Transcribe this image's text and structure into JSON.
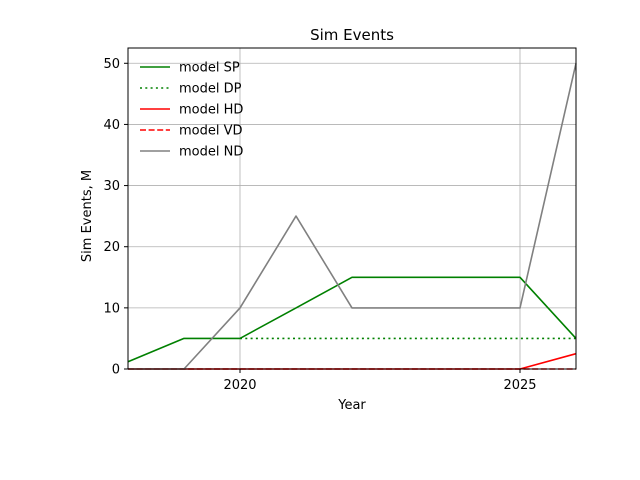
{
  "chart_data": {
    "type": "line",
    "title": "Sim Events",
    "xlabel": "Year",
    "ylabel": "Sim Events, M",
    "xlim": [
      2018,
      2026
    ],
    "ylim": [
      0,
      52.5
    ],
    "x_ticks": [
      2020,
      2025
    ],
    "y_ticks": [
      0,
      10,
      20,
      30,
      40,
      50
    ],
    "grid": true,
    "legend_position": "top-left",
    "x": [
      2018,
      2019,
      2020,
      2021,
      2022,
      2023,
      2024,
      2025,
      2026
    ],
    "series": [
      {
        "name": "model SP",
        "color": "#008000",
        "style": "solid",
        "values": [
          1.2,
          5,
          5,
          10,
          15,
          15,
          15,
          15,
          5
        ]
      },
      {
        "name": "model DP",
        "color": "#008000",
        "style": "dotted",
        "values": [
          null,
          null,
          5,
          5,
          5,
          5,
          5,
          5,
          5
        ]
      },
      {
        "name": "model HD",
        "color": "#ff0000",
        "style": "solid",
        "values": [
          0,
          0,
          0,
          0,
          0,
          0,
          0,
          0,
          2.5
        ]
      },
      {
        "name": "model VD",
        "color": "#ff0000",
        "style": "dashed",
        "values": [
          0,
          0,
          0,
          0,
          0,
          0,
          0,
          0,
          0
        ]
      },
      {
        "name": "model ND",
        "color": "#808080",
        "style": "solid",
        "values": [
          0,
          0,
          10,
          25,
          10,
          10,
          10,
          10,
          50
        ]
      }
    ]
  }
}
